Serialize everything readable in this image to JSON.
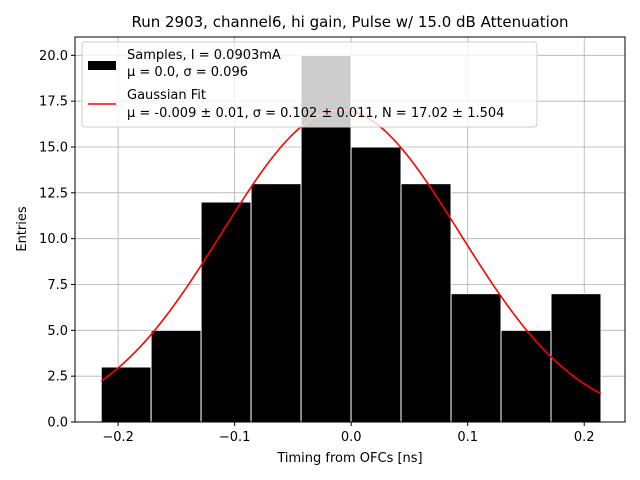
{
  "chart_data": {
    "type": "bar",
    "title": "Run 2903, channel6, hi gain, Pulse w/ 15.0 dB Attenuation",
    "xlabel": "Timing from OFCs [ns]",
    "ylabel": "Entries",
    "xlim": [
      -0.237,
      0.235
    ],
    "ylim": [
      0,
      21
    ],
    "grid": true,
    "legend_position": "top-left",
    "x_ticks": [
      {
        "value": -0.2,
        "label": "−0.2"
      },
      {
        "value": -0.1,
        "label": "−0.1"
      },
      {
        "value": 0.0,
        "label": "0.0"
      },
      {
        "value": 0.1,
        "label": "0.1"
      },
      {
        "value": 0.2,
        "label": "0.2"
      }
    ],
    "y_ticks": [
      {
        "value": 0.0,
        "label": "0.0"
      },
      {
        "value": 2.5,
        "label": "2.5"
      },
      {
        "value": 5.0,
        "label": "5.0"
      },
      {
        "value": 7.5,
        "label": "7.5"
      },
      {
        "value": 10.0,
        "label": "10.0"
      },
      {
        "value": 12.5,
        "label": "12.5"
      },
      {
        "value": 15.0,
        "label": "15.0"
      },
      {
        "value": 17.5,
        "label": "17.5"
      },
      {
        "value": 20.0,
        "label": "20.0"
      }
    ],
    "histogram": {
      "bin_edges": [
        -0.2145,
        -0.1717,
        -0.1288,
        -0.0859,
        -0.043,
        -0.0001,
        0.0428,
        0.0857,
        0.1286,
        0.1715,
        0.2144
      ],
      "counts": [
        3,
        5,
        12,
        13,
        20,
        15,
        13,
        7,
        5,
        7
      ],
      "color": "#000000",
      "edge_color": "#ffffff"
    },
    "fit": {
      "mu": -0.009,
      "sigma": 0.102,
      "N": 17.02,
      "x_range": [
        -0.2145,
        0.2144
      ],
      "color": "#ff0000"
    },
    "legend": [
      {
        "line1": "Samples, I = 0.0903mA",
        "line2": "μ = 0.0, σ = 0.096"
      },
      {
        "line1": "Gaussian Fit",
        "line2": "μ = -0.009 ± 0.01, σ = 0.102 ± 0.011, N = 17.02 ± 1.504"
      }
    ]
  }
}
